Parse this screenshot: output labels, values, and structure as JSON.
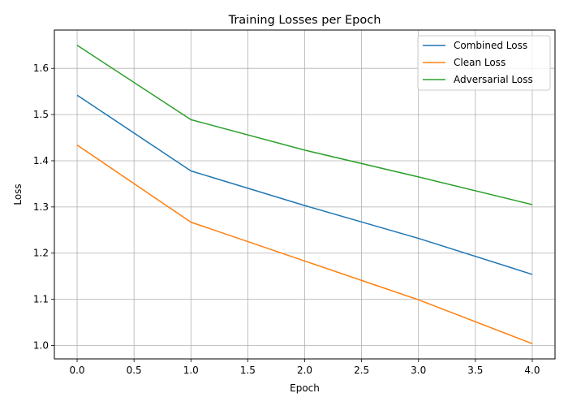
{
  "chart_data": {
    "type": "line",
    "title": "Training Losses per Epoch",
    "xlabel": "Epoch",
    "ylabel": "Loss",
    "x": [
      0,
      1,
      2,
      3,
      4
    ],
    "xlim": [
      -0.2,
      4.2
    ],
    "ylim": [
      0.971,
      1.683
    ],
    "xticks": [
      0.0,
      0.5,
      1.0,
      1.5,
      2.0,
      2.5,
      3.0,
      3.5,
      4.0
    ],
    "xtick_labels": [
      "0.0",
      "0.5",
      "1.0",
      "1.5",
      "2.0",
      "2.5",
      "3.0",
      "3.5",
      "4.0"
    ],
    "yticks": [
      1.0,
      1.1,
      1.2,
      1.3,
      1.4,
      1.5,
      1.6
    ],
    "ytick_labels": [
      "1.0",
      "1.1",
      "1.2",
      "1.3",
      "1.4",
      "1.5",
      "1.6"
    ],
    "grid": true,
    "legend_position": "top-right",
    "series": [
      {
        "name": "Combined Loss",
        "color": "#1f77b4",
        "values": [
          1.542,
          1.378,
          1.303,
          1.232,
          1.154
        ]
      },
      {
        "name": "Clean Loss",
        "color": "#ff7f0e",
        "values": [
          1.434,
          1.267,
          1.183,
          1.099,
          1.004
        ]
      },
      {
        "name": "Adversarial Loss",
        "color": "#2ca02c",
        "values": [
          1.65,
          1.489,
          1.423,
          1.365,
          1.305
        ]
      }
    ]
  }
}
